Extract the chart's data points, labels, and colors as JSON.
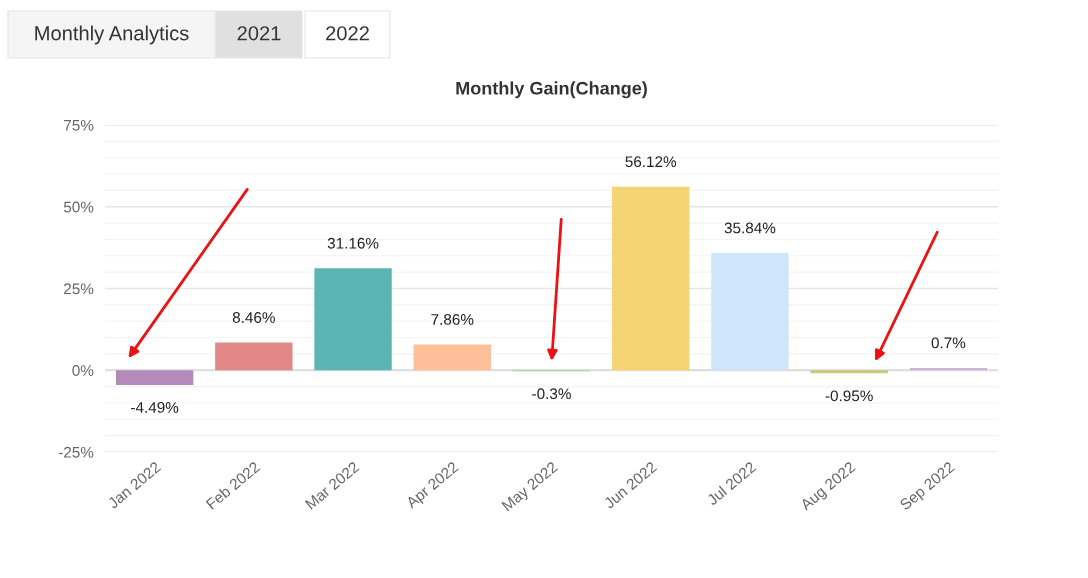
{
  "chart_data": {
    "type": "bar",
    "title": "Monthly Gain(Change)",
    "categories": [
      "Jan 2022",
      "Feb 2022",
      "Mar 2022",
      "Apr 2022",
      "May 2022",
      "Jun 2022",
      "Jul 2022",
      "Aug 2022",
      "Sep 2022"
    ],
    "values": [
      -4.49,
      8.46,
      31.16,
      7.86,
      -0.3,
      56.12,
      35.84,
      -0.95,
      0.7
    ],
    "value_labels": [
      "-4.49%",
      "8.46%",
      "31.16%",
      "7.86%",
      "-0.3%",
      "56.12%",
      "35.84%",
      "-0.95%",
      "0.7%"
    ],
    "colors": [
      "#b48ab9",
      "#e38888",
      "#5bb5b3",
      "#ffbf99",
      "#a9cfa9",
      "#f5d475",
      "#cfe5fa",
      "#c9c877",
      "#cbb3da"
    ],
    "ylim": [
      -25,
      75
    ],
    "yticks": [
      {
        "value": -25,
        "label": "-25%"
      },
      {
        "value": -20,
        "label": null
      },
      {
        "value": -15,
        "label": null
      },
      {
        "value": -10,
        "label": null
      },
      {
        "value": -5,
        "label": null
      },
      {
        "value": 0,
        "label": "0%"
      },
      {
        "value": 5,
        "label": null
      },
      {
        "value": 10,
        "label": null
      },
      {
        "value": 15,
        "label": null
      },
      {
        "value": 20,
        "label": null
      },
      {
        "value": 25,
        "label": "25%"
      },
      {
        "value": 30,
        "label": null
      },
      {
        "value": 35,
        "label": null
      },
      {
        "value": 40,
        "label": null
      },
      {
        "value": 45,
        "label": null
      },
      {
        "value": 50,
        "label": "50%"
      },
      {
        "value": 55,
        "label": null
      },
      {
        "value": 60,
        "label": null
      },
      {
        "value": 65,
        "label": null
      },
      {
        "value": 70,
        "label": null
      },
      {
        "value": 75,
        "label": "75%"
      }
    ],
    "grid": "y",
    "annotations": [
      "Monthly Analytics",
      "2021",
      "2022"
    ]
  }
}
